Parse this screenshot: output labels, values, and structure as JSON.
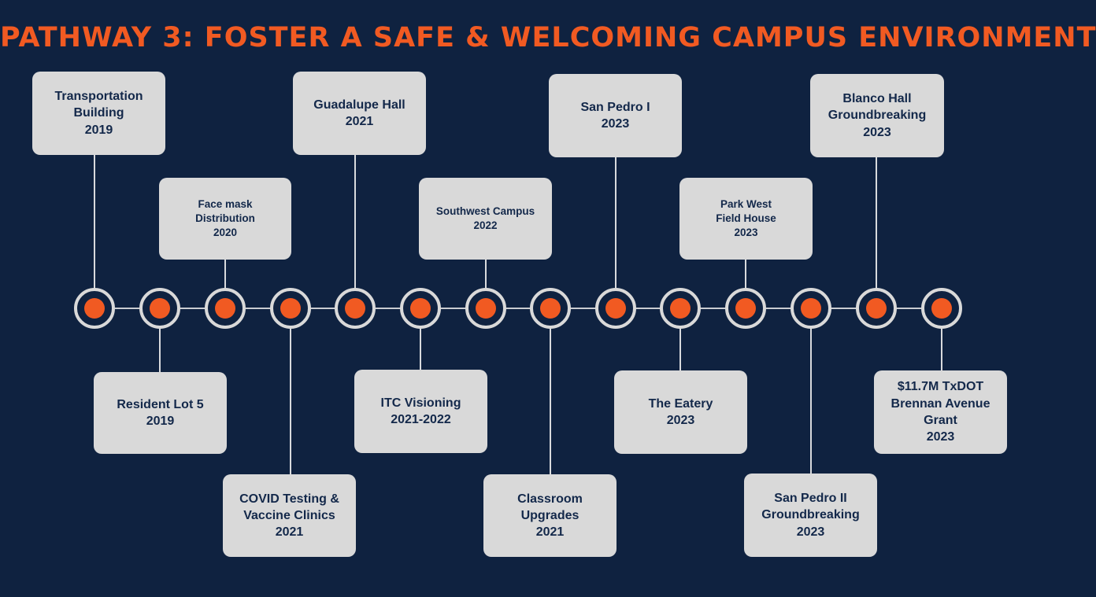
{
  "title": "PATHWAY 3: FOSTER A SAFE & WELCOMING CAMPUS ENVIRONMENT",
  "colors": {
    "background": "#0f2240",
    "accent": "#f15a22",
    "box": "#d9d9d9",
    "box_text": "#13284a"
  },
  "events": [
    {
      "id": "transportation-building",
      "lines": [
        "Transportation",
        "Building",
        "2019"
      ]
    },
    {
      "id": "resident-lot-5",
      "lines": [
        "Resident Lot 5",
        "2019"
      ]
    },
    {
      "id": "face-mask-distribution",
      "lines": [
        "Face mask",
        "Distribution",
        "2020"
      ]
    },
    {
      "id": "covid-testing",
      "lines": [
        "COVID Testing &",
        "Vaccine Clinics",
        "2021"
      ]
    },
    {
      "id": "guadalupe-hall",
      "lines": [
        "Guadalupe Hall",
        "2021"
      ]
    },
    {
      "id": "itc-visioning",
      "lines": [
        "ITC Visioning",
        "2021-2022"
      ]
    },
    {
      "id": "southwest-campus",
      "lines": [
        "Southwest Campus",
        "2022"
      ]
    },
    {
      "id": "classroom-upgrades",
      "lines": [
        "Classroom",
        "Upgrades",
        "2021"
      ]
    },
    {
      "id": "san-pedro-i",
      "lines": [
        "San Pedro I",
        "2023"
      ]
    },
    {
      "id": "the-eatery",
      "lines": [
        "The Eatery",
        "2023"
      ]
    },
    {
      "id": "park-west-field-house",
      "lines": [
        "Park West",
        "Field House",
        "2023"
      ]
    },
    {
      "id": "san-pedro-ii",
      "lines": [
        "San Pedro II",
        "Groundbreaking",
        "2023"
      ]
    },
    {
      "id": "blanco-hall",
      "lines": [
        "Blanco Hall",
        "Groundbreaking",
        "2023"
      ]
    },
    {
      "id": "txdot-grant",
      "lines": [
        "$11.7M TxDOT",
        "Brennan Avenue",
        "Grant",
        "2023"
      ]
    }
  ]
}
